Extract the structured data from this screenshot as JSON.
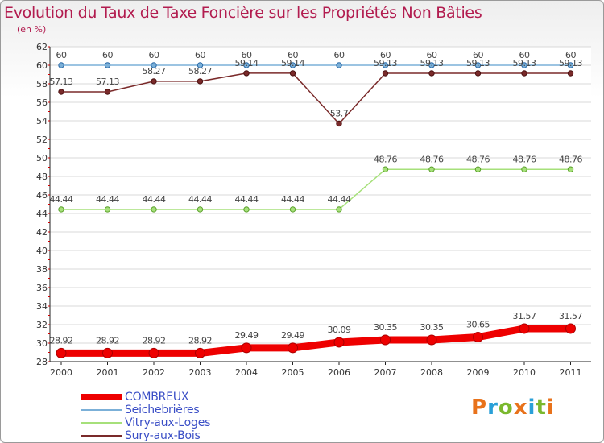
{
  "title": "Evolution du Taux de Taxe Foncière sur les Propriétés Non Bâties",
  "subtitle": "(en %)",
  "logo": {
    "text": "Proxiti",
    "colors": [
      "#e8721b",
      "#2aa0d8",
      "#7ab82e",
      "#e8721b",
      "#2aa0d8",
      "#7ab82e",
      "#e8721b"
    ]
  },
  "chart_data": {
    "type": "line",
    "x": [
      "2000",
      "2001",
      "2002",
      "2003",
      "2004",
      "2005",
      "2006",
      "2007",
      "2008",
      "2009",
      "2010",
      "2011"
    ],
    "ylim": [
      28,
      62
    ],
    "yticks": [
      "28",
      "30",
      "32",
      "34",
      "36",
      "38",
      "40",
      "42",
      "44",
      "46",
      "48",
      "50",
      "52",
      "54",
      "56",
      "58",
      "60",
      "62"
    ],
    "grid": "horizontal",
    "legend_position": "bottom-left",
    "series": [
      {
        "name": "COMBREUX",
        "color": "#ee0000",
        "width": "thick",
        "values": [
          28.92,
          28.92,
          28.92,
          28.92,
          29.49,
          29.49,
          30.09,
          30.35,
          30.35,
          30.65,
          31.57,
          31.57
        ],
        "labels": [
          "28.92",
          "28.92",
          "28.92",
          "28.92",
          "29.49",
          "29.49",
          "30.09",
          "30.35",
          "30.35",
          "30.65",
          "31.57",
          "31.57"
        ]
      },
      {
        "name": "Seichebrières",
        "color": "#7bb0d8",
        "width": "thin",
        "values": [
          60,
          60,
          60,
          60,
          60,
          60,
          60,
          60,
          60,
          60,
          60,
          60
        ],
        "labels": [
          "60",
          "60",
          "60",
          "60",
          "60",
          "60",
          "60",
          "60",
          "60",
          "60",
          "60",
          "60"
        ]
      },
      {
        "name": "Vitry-aux-Loges",
        "color": "#a6e07a",
        "width": "thin",
        "values": [
          44.44,
          44.44,
          44.44,
          44.44,
          44.44,
          44.44,
          44.44,
          48.76,
          48.76,
          48.76,
          48.76,
          48.76
        ],
        "labels": [
          "44.44",
          "44.44",
          "44.44",
          "44.44",
          "44.44",
          "44.44",
          "44.44",
          "48.76",
          "48.76",
          "48.76",
          "48.76",
          "48.76"
        ]
      },
      {
        "name": "Sury-aux-Bois",
        "color": "#7a2a2a",
        "width": "thin",
        "values": [
          57.13,
          57.13,
          58.27,
          58.27,
          59.14,
          59.14,
          53.7,
          59.13,
          59.13,
          59.13,
          59.13,
          59.13
        ],
        "labels": [
          "57.13",
          "57.13",
          "58.27",
          "58.27",
          "59.14",
          "59.14",
          "53.7",
          "59.13",
          "59.13",
          "59.13",
          "59.13",
          "59.13"
        ]
      }
    ]
  }
}
